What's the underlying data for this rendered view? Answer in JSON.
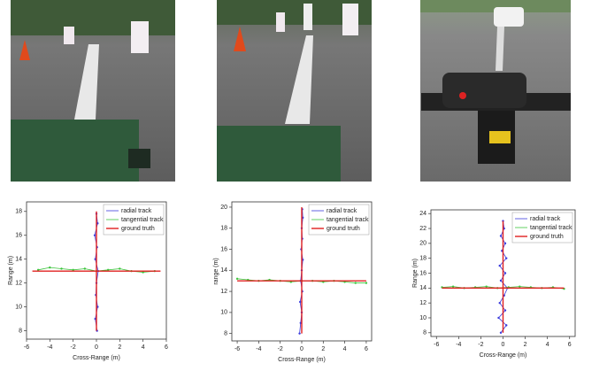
{
  "chart_data": [
    {
      "type": "line",
      "xlabel": "Cross-Range (m)",
      "ylabel": "Range (m)",
      "xlim": [
        -6,
        6
      ],
      "ylim": [
        7.3,
        18.8
      ],
      "xticks": [
        -6,
        -4,
        -2,
        0,
        2,
        4,
        6
      ],
      "yticks": [
        8,
        10,
        12,
        14,
        16,
        18
      ],
      "series": [
        {
          "name": "radial track",
          "color": "#3b3bdc",
          "marker": true,
          "x": [
            0.05,
            -0.1,
            0.1,
            -0.05,
            0.0,
            0.15,
            -0.1,
            0.05,
            -0.15,
            0.1,
            0.0
          ],
          "values": [
            8.0,
            9.0,
            10.0,
            11.0,
            12.0,
            13.0,
            14.0,
            15.0,
            16.0,
            17.0,
            17.8
          ]
        },
        {
          "name": "tangential track",
          "color": "#3cc43c",
          "marker": true,
          "x": [
            -5,
            -4,
            -3,
            -2,
            -1,
            0,
            1,
            2,
            3,
            4,
            5
          ],
          "values": [
            13.1,
            13.3,
            13.2,
            13.1,
            13.2,
            13.0,
            13.1,
            13.2,
            13.0,
            12.9,
            13.0
          ]
        },
        {
          "name": "ground truth",
          "color": "#e02020",
          "marker": false,
          "x": [
            0,
            0,
            null,
            -5.5,
            5.5
          ],
          "values": [
            8,
            18,
            null,
            13,
            13
          ]
        }
      ]
    },
    {
      "type": "line",
      "xlabel": "Cross-Range (m)",
      "ylabel": "range (m)",
      "xlim": [
        -6.5,
        6.5
      ],
      "ylim": [
        7.3,
        20.5
      ],
      "xticks": [
        -6,
        -4,
        -2,
        0,
        2,
        4,
        6
      ],
      "yticks": [
        8,
        10,
        12,
        14,
        16,
        18,
        20
      ],
      "series": [
        {
          "name": "radial track",
          "color": "#3b3bdc",
          "marker": true,
          "x": [
            -0.2,
            -0.1,
            0.0,
            -0.15,
            0.05,
            -0.1,
            0.0,
            0.1,
            -0.05,
            0.05,
            0.0,
            0.1,
            0.05
          ],
          "values": [
            8.0,
            9.0,
            10.0,
            11.0,
            12.0,
            13.0,
            14.0,
            15.0,
            16.0,
            17.0,
            18.0,
            19.0,
            19.8
          ]
        },
        {
          "name": "tangential track",
          "color": "#3cc43c",
          "marker": true,
          "x": [
            -6,
            -5,
            -4,
            -3,
            -2,
            -1,
            0,
            1,
            2,
            3,
            4,
            5,
            6
          ],
          "values": [
            13.2,
            13.1,
            13.0,
            13.1,
            13.0,
            12.9,
            13.0,
            13.0,
            12.9,
            13.0,
            12.9,
            12.8,
            12.8
          ]
        },
        {
          "name": "ground truth",
          "color": "#e02020",
          "marker": false,
          "x": [
            0,
            0,
            null,
            -6,
            6
          ],
          "values": [
            8,
            20,
            null,
            13,
            13
          ]
        }
      ]
    },
    {
      "type": "line",
      "xlabel": "Cross-Range (m)",
      "ylabel": "Range (m)",
      "xlim": [
        -6.5,
        6.5
      ],
      "ylim": [
        7.5,
        24.5
      ],
      "xticks": [
        -6,
        -4,
        -2,
        0,
        2,
        4,
        6
      ],
      "yticks": [
        8,
        10,
        12,
        14,
        16,
        18,
        20,
        22,
        24
      ],
      "series": [
        {
          "name": "radial track",
          "color": "#3b3bdc",
          "marker": true,
          "x": [
            -0.2,
            0.3,
            -0.4,
            0.2,
            -0.3,
            0.1,
            0.4,
            -0.2,
            0.2,
            -0.3,
            0.3,
            -0.1,
            0.2,
            -0.2,
            0.1,
            0.0
          ],
          "values": [
            8.0,
            9.0,
            10.0,
            11.0,
            12.0,
            13.0,
            14.0,
            15.0,
            16.0,
            17.0,
            18.0,
            19.0,
            20.0,
            21.0,
            22.0,
            23.0
          ]
        },
        {
          "name": "tangential track",
          "color": "#3cc43c",
          "marker": true,
          "x": [
            -5.5,
            -4.5,
            -3.5,
            -2.5,
            -1.5,
            -0.5,
            0.5,
            1.5,
            2.5,
            3.5,
            4.5,
            5.5
          ],
          "values": [
            14.1,
            14.2,
            14.0,
            14.1,
            14.2,
            14.0,
            14.1,
            14.2,
            14.1,
            14.0,
            14.1,
            13.9
          ]
        },
        {
          "name": "ground truth",
          "color": "#e02020",
          "marker": false,
          "x": [
            0,
            0,
            null,
            -5.5,
            5.5
          ],
          "values": [
            8,
            23,
            null,
            14,
            14
          ]
        }
      ]
    }
  ]
}
